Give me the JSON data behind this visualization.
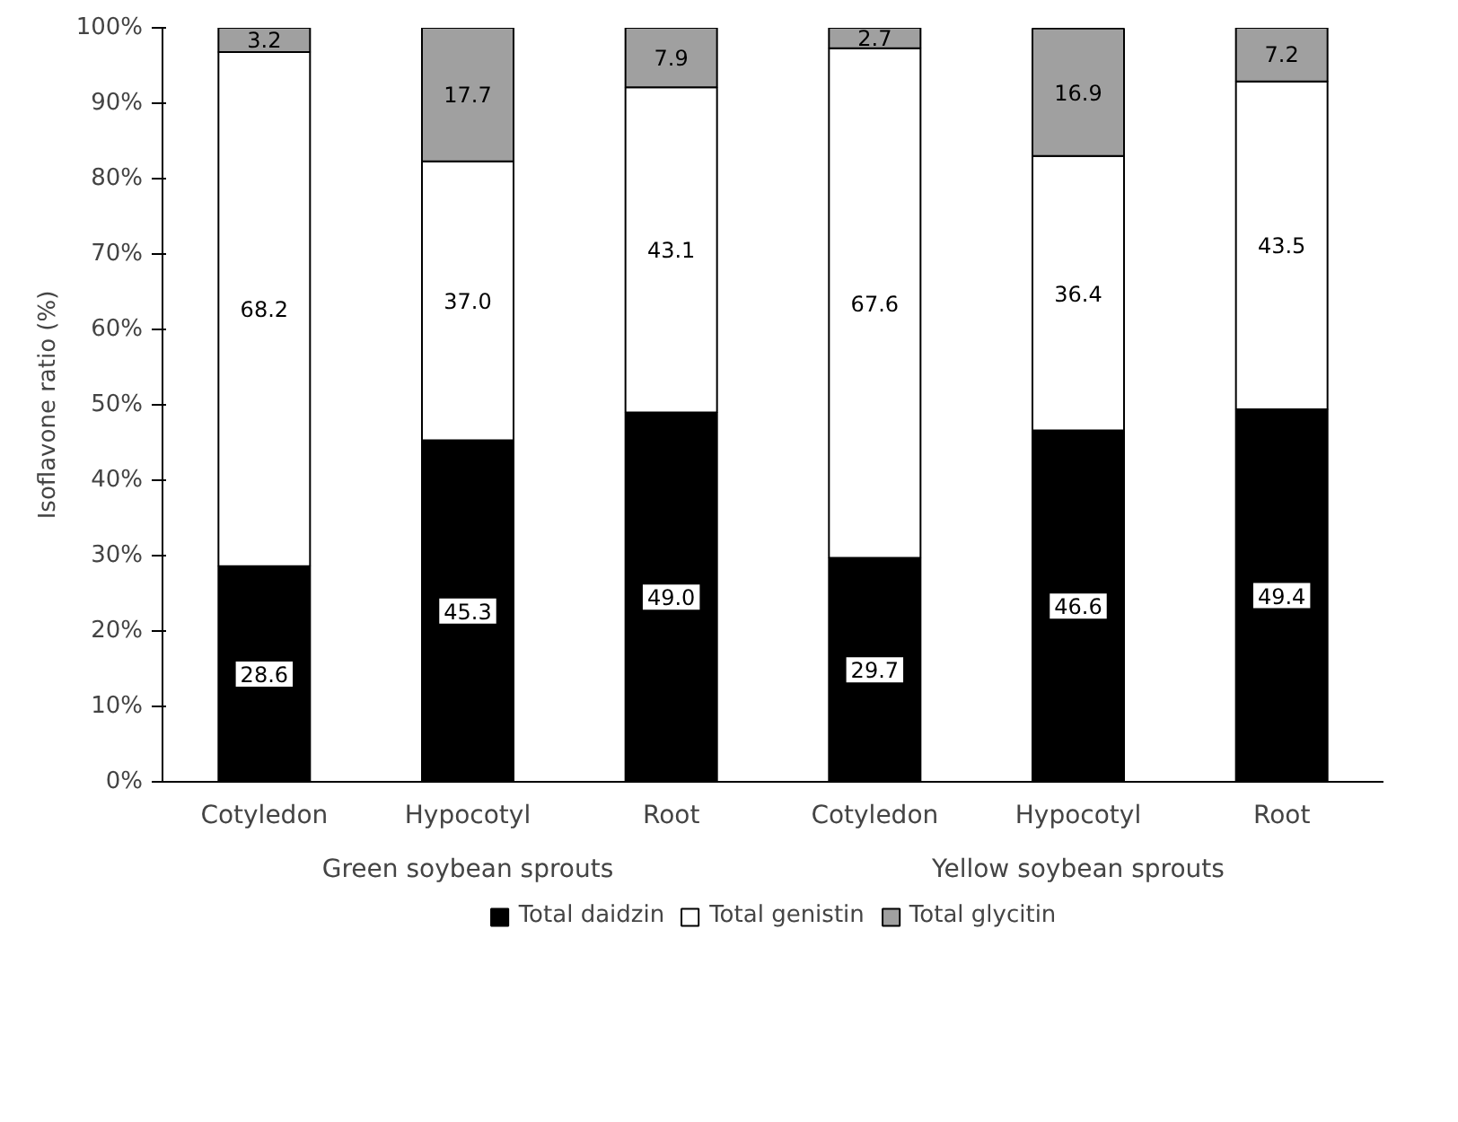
{
  "chart_data": {
    "type": "bar",
    "stacked": true,
    "ylabel": "Isoflavone ratio (%)",
    "categories": [
      "Cotyledon",
      "Hypocotyl",
      "Root",
      "Cotyledon",
      "Hypocotyl",
      "Root"
    ],
    "series": [
      {
        "name": "Total daidzin",
        "color": "#000000",
        "values": [
          28.6,
          45.3,
          49.0,
          29.7,
          46.6,
          49.4
        ],
        "value_labels": [
          "28.6",
          "45.3",
          "49.0",
          "29.7",
          "46.6",
          "49.4"
        ]
      },
      {
        "name": "Total genistin",
        "color": "#ffffff",
        "values": [
          68.2,
          37.0,
          43.1,
          67.6,
          36.4,
          43.5
        ],
        "value_labels": [
          "68.2",
          "37.0",
          "43.1",
          "67.6",
          "36.4",
          "43.5"
        ]
      },
      {
        "name": "Total glycitin",
        "color": "#a0a0a0",
        "values": [
          3.2,
          17.7,
          7.9,
          2.7,
          16.9,
          7.2
        ]
      }
    ],
    "annotations": [
      "Green soybean sprouts",
      "Yellow soybean sprouts"
    ],
    "ylim": [
      0,
      100
    ],
    "yticks": [
      {
        "value": 0,
        "label": "0%"
      },
      {
        "value": 10,
        "label": "10%"
      },
      {
        "value": 20,
        "label": "20%"
      },
      {
        "value": 30,
        "label": "30%"
      },
      {
        "value": 40,
        "label": "40%"
      },
      {
        "value": 50,
        "label": "50%"
      },
      {
        "value": 60,
        "label": "60%"
      },
      {
        "value": 70,
        "label": "70%"
      },
      {
        "value": 80,
        "label": "80%"
      },
      {
        "value": 90,
        "label": "90%"
      },
      {
        "value": 100,
        "label": "100%"
      }
    ],
    "data_labels": true,
    "legend": "bottom",
    "grid": false
  }
}
